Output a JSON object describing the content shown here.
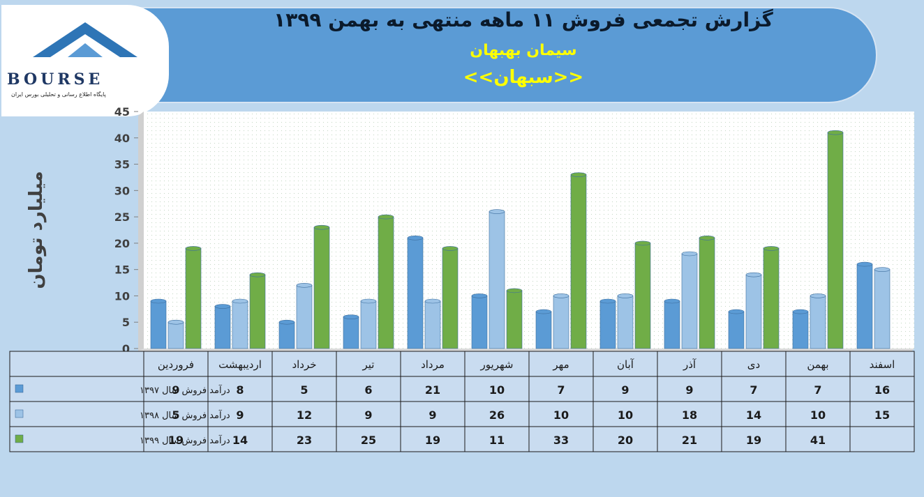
{
  "header": {
    "title": "گزارش تجمعی فروش ۱۱ ماهه منتهی به بهمن ۱۳۹۹",
    "company": "سیمان بهبهان",
    "ticker": "<<سبهان>>"
  },
  "logo": {
    "name": "BOURSE",
    "tagline": "پایگاه اطلاع رسانی و تحلیلی بورس ایران"
  },
  "chart_data": {
    "type": "bar",
    "ylabel": "میلیارد تومان",
    "ylim": [
      0,
      45
    ],
    "yticks": [
      0,
      5,
      10,
      15,
      20,
      25,
      30,
      35,
      40,
      45
    ],
    "categories": [
      "فروردین",
      "اردیبهشت",
      "خرداد",
      "تیر",
      "مرداد",
      "شهریور",
      "مهر",
      "آبان",
      "آذر",
      "دی",
      "بهمن",
      "اسفند"
    ],
    "series": [
      {
        "name": "درآمد فروش سال ۱۳۹۷",
        "color": "#5b9bd5",
        "values": [
          9,
          8,
          5,
          6,
          21,
          10,
          7,
          9,
          9,
          7,
          7,
          16
        ]
      },
      {
        "name": "درآمد فروش سال ۱۳۹۸",
        "color": "#9dc3e6",
        "values": [
          5,
          9,
          12,
          9,
          9,
          26,
          10,
          10,
          18,
          14,
          10,
          15
        ]
      },
      {
        "name": "درآمد فروش سال ۱۳۹۹",
        "color": "#70ad47",
        "values": [
          19,
          14,
          23,
          25,
          19,
          11,
          33,
          20,
          21,
          19,
          41,
          null
        ]
      }
    ],
    "grid": true,
    "legend": "data-table"
  }
}
